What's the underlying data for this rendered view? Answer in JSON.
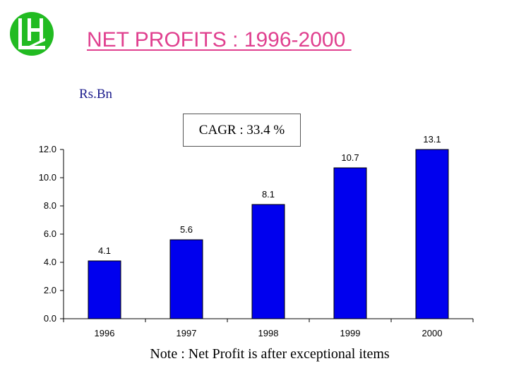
{
  "title": "NET PROFITS : 1996-2000 ",
  "unit_label": "Rs.Bn",
  "annotation": "CAGR : 33.4 %",
  "note": "Note : Net Profit is after exceptional items",
  "colors": {
    "bar": "#0000ee",
    "title": "#e0408f",
    "logo": "#22bb22"
  },
  "logo_icon": "lh-logo-icon",
  "chart_data": {
    "type": "bar",
    "categories": [
      "1996",
      "1997",
      "1998",
      "1999",
      "2000"
    ],
    "values": [
      4.1,
      5.6,
      8.1,
      10.7,
      13.1
    ],
    "data_labels": [
      "4.1",
      "5.6",
      "8.1",
      "10.7",
      "13.1"
    ],
    "y_ticks": [
      "0.0",
      "2.0",
      "4.0",
      "6.0",
      "8.0",
      "10.0",
      "12.0"
    ],
    "ylim": [
      0,
      12
    ],
    "grid": false,
    "title": "",
    "xlabel": "",
    "ylabel": "Rs.Bn"
  }
}
